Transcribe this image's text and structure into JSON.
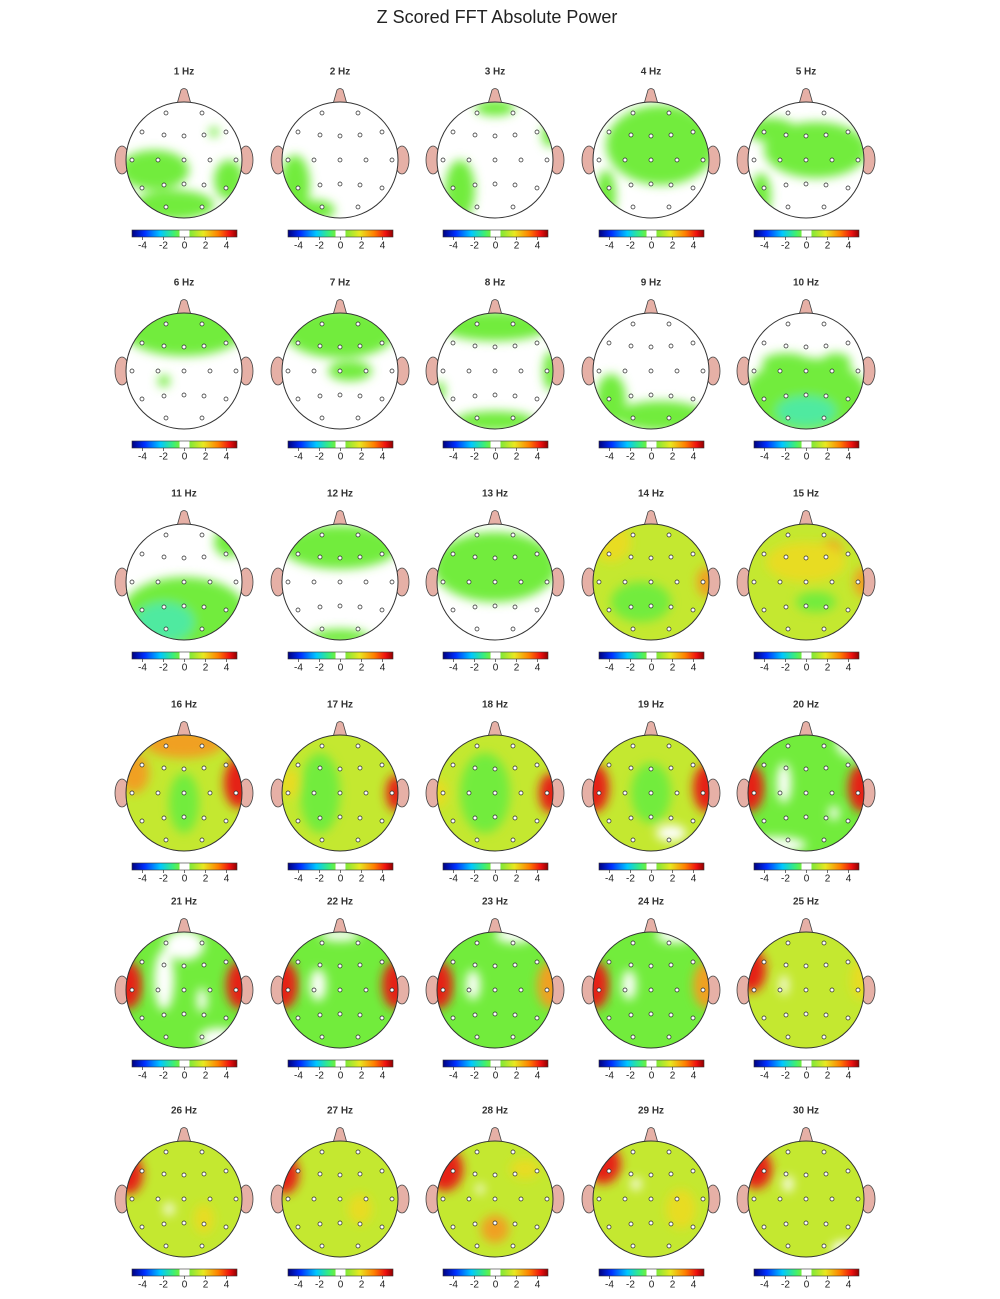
{
  "title": "Z Scored FFT Absolute Power",
  "panels": [
    {
      "label": "1 Hz"
    },
    {
      "label": "2 Hz"
    },
    {
      "label": "3 Hz"
    },
    {
      "label": "4 Hz"
    },
    {
      "label": "5 Hz"
    },
    {
      "label": "6 Hz"
    },
    {
      "label": "7 Hz"
    },
    {
      "label": "8 Hz"
    },
    {
      "label": "9 Hz"
    },
    {
      "label": "10 Hz"
    },
    {
      "label": "11 Hz"
    },
    {
      "label": "12 Hz"
    },
    {
      "label": "13 Hz"
    },
    {
      "label": "14 Hz"
    },
    {
      "label": "15 Hz"
    },
    {
      "label": "16 Hz"
    },
    {
      "label": "17 Hz"
    },
    {
      "label": "18 Hz"
    },
    {
      "label": "19 Hz"
    },
    {
      "label": "20 Hz"
    },
    {
      "label": "21 Hz"
    },
    {
      "label": "22 Hz"
    },
    {
      "label": "23 Hz"
    },
    {
      "label": "24 Hz"
    },
    {
      "label": "25 Hz"
    },
    {
      "label": "26 Hz"
    },
    {
      "label": "27 Hz"
    },
    {
      "label": "28 Hz"
    },
    {
      "label": "29 Hz"
    },
    {
      "label": "30 Hz"
    }
  ],
  "colorbar": {
    "lim": [
      -5,
      5
    ],
    "ticks": [
      -4,
      -2,
      0,
      2,
      4
    ]
  }
}
